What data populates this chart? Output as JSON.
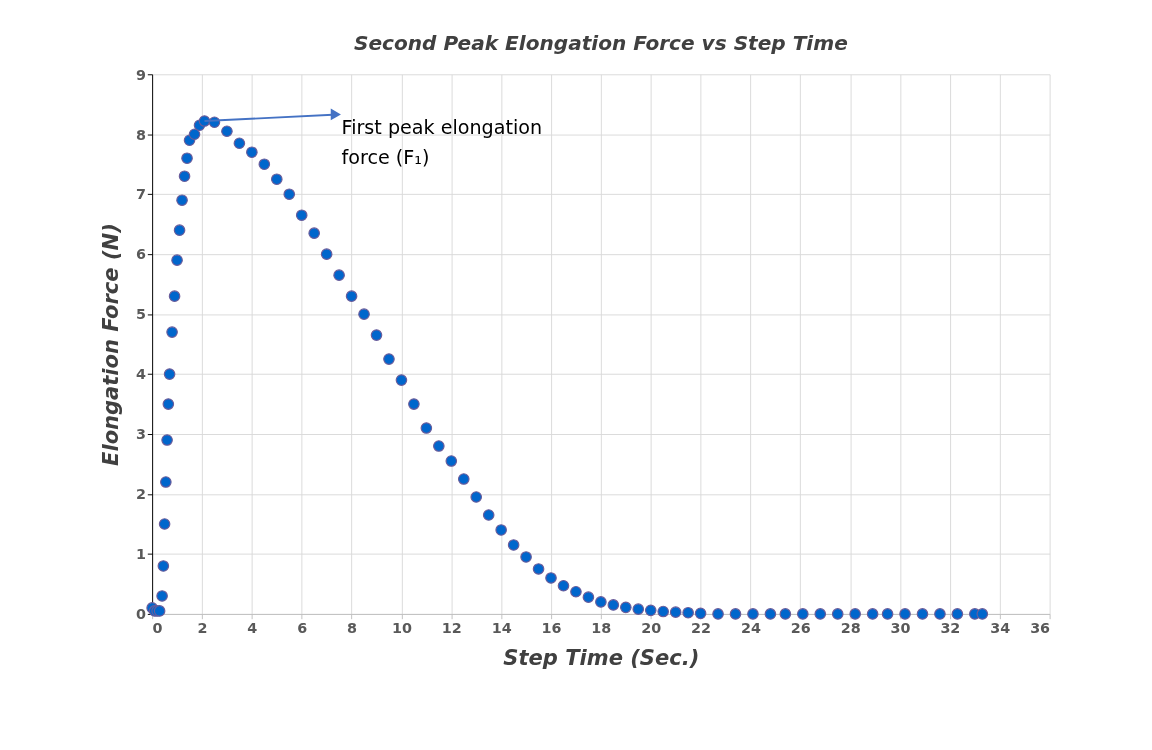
{
  "chart_data": {
    "type": "scatter",
    "title": "Second Peak Elongation Force vs Step Time",
    "xlabel": "Step Time (Sec.)",
    "ylabel": "Elongation Force (N)",
    "annotations": [
      {
        "text": "First peak elongation\nforce (F₁)",
        "x": 2.1,
        "y": 8.22
      }
    ],
    "series": [
      {
        "color": "#0066cc",
        "x": [
          0,
          0.1,
          0.2,
          0.3,
          0.4,
          0.45,
          0.5,
          0.55,
          0.6,
          0.65,
          0.7,
          0.8,
          0.9,
          1.0,
          1.1,
          1.2,
          1.3,
          1.4,
          1.5,
          1.7,
          1.9,
          2.1,
          2.5,
          3.0,
          3.5,
          4.0,
          4.5,
          5.0,
          5.5,
          6.0,
          6.5,
          7.0,
          7.5,
          8.0,
          8.5,
          9.0,
          9.5,
          10.0,
          10.5,
          11.0,
          11.5,
          12.0,
          12.5,
          13.0,
          13.5,
          14.0,
          14.5,
          15.0,
          15.5,
          16.0,
          16.5,
          17.0,
          17.5,
          18.0,
          18.5,
          19.0,
          19.5,
          20.0,
          20.5,
          21.0,
          21.5,
          22.0,
          22.7,
          23.4,
          24.1,
          24.8,
          25.4,
          26.1,
          26.8,
          27.5,
          28.2,
          28.9,
          29.5,
          30.2,
          30.9,
          31.6,
          32.3,
          33.0,
          33.3
        ],
        "values": [
          0.1,
          0.05,
          0.05,
          0.05,
          0.3,
          0.8,
          1.5,
          2.2,
          2.9,
          3.5,
          4.0,
          4.7,
          5.3,
          5.9,
          6.4,
          6.9,
          7.3,
          7.6,
          7.9,
          8.0,
          8.15,
          8.22,
          8.2,
          8.05,
          7.85,
          7.7,
          7.5,
          7.25,
          7.0,
          6.65,
          6.35,
          6.0,
          5.65,
          5.3,
          5.0,
          4.65,
          4.25,
          3.9,
          3.5,
          3.1,
          2.8,
          2.55,
          2.25,
          1.95,
          1.65,
          1.4,
          1.15,
          0.95,
          0.75,
          0.6,
          0.47,
          0.37,
          0.28,
          0.2,
          0.15,
          0.11,
          0.08,
          0.06,
          0.04,
          0.03,
          0.02,
          0.01,
          0,
          0,
          0,
          0,
          0,
          0,
          0,
          0,
          0,
          0,
          0,
          0,
          0,
          0,
          0,
          0,
          0
        ]
      }
    ],
    "xlim": [
      0,
      36
    ],
    "xticks": [
      0,
      2,
      4,
      6,
      8,
      10,
      12,
      14,
      16,
      18,
      20,
      22,
      24,
      26,
      28,
      30,
      32,
      34,
      36
    ],
    "ylim": [
      0,
      9
    ],
    "yticks": [
      0,
      1,
      2,
      3,
      4,
      5,
      6,
      7,
      8,
      9
    ],
    "grid": true,
    "marker": "circle"
  }
}
